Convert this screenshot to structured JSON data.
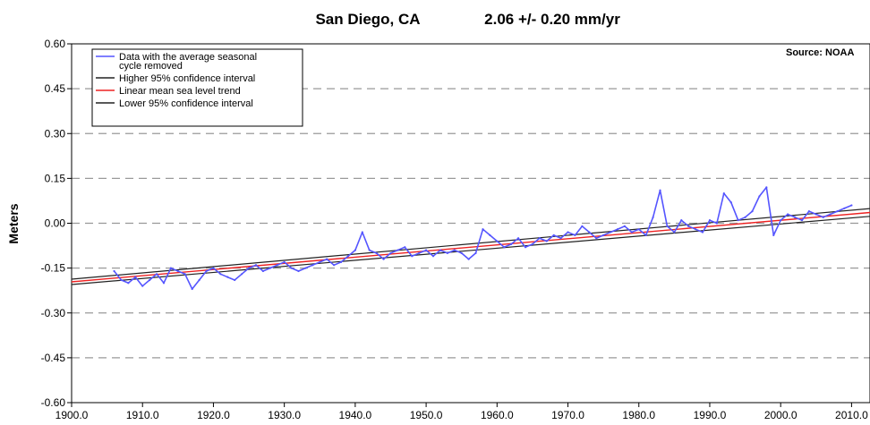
{
  "chart_data": {
    "type": "line",
    "title": "San Diego, CA",
    "subtitle": "2.06 +/- 0.20 mm/yr",
    "source": "Source: NOAA",
    "ylabel": "Meters",
    "xlabel": "",
    "xlim": [
      1900,
      2012.6
    ],
    "ylim": [
      -0.6,
      0.6
    ],
    "x_ticks": [
      1900,
      1910,
      1920,
      1930,
      1940,
      1950,
      1960,
      1970,
      1980,
      1990,
      2000,
      2010
    ],
    "x_tick_labels": [
      "1900.0",
      "1910.0",
      "1920.0",
      "1930.0",
      "1940.0",
      "1950.0",
      "1960.0",
      "1970.0",
      "1980.0",
      "1990.0",
      "2000.0",
      "2010.0"
    ],
    "y_ticks": [
      0.6,
      0.45,
      0.3,
      0.15,
      0.0,
      -0.15,
      -0.3,
      -0.45,
      -0.6
    ],
    "y_tick_labels": [
      "0.60",
      "0.45",
      "0.30",
      "0.15",
      "0.00",
      "-0.15",
      "-0.30",
      "-0.45",
      "-0.60"
    ],
    "grid": "horizontal dashed",
    "legend_position": "top-left",
    "colors": {
      "data": "#5555ff",
      "upper_ci": "#222222",
      "trend": "#ee2222",
      "lower_ci": "#222222",
      "grid": "#999999"
    },
    "legend": [
      {
        "label_line1": "Data with the average seasonal",
        "label_line2": "cycle removed",
        "color": "#5555ff"
      },
      {
        "label_line1": "Higher 95% confidence interval",
        "label_line2": "",
        "color": "#222222"
      },
      {
        "label_line1": "Linear mean sea level trend",
        "label_line2": "",
        "color": "#ee2222"
      },
      {
        "label_line1": "Lower 95% confidence interval",
        "label_line2": "",
        "color": "#222222"
      }
    ],
    "series": [
      {
        "role": "data",
        "x": [
          1906,
          1907,
          1908,
          1909,
          1910,
          1911,
          1912,
          1913,
          1914,
          1915,
          1916,
          1917,
          1918,
          1919,
          1920,
          1921,
          1922,
          1923,
          1924,
          1925,
          1926,
          1927,
          1928,
          1929,
          1930,
          1931,
          1932,
          1933,
          1934,
          1935,
          1936,
          1937,
          1938,
          1939,
          1940,
          1941,
          1942,
          1943,
          1944,
          1945,
          1946,
          1947,
          1948,
          1949,
          1950,
          1951,
          1952,
          1953,
          1954,
          1955,
          1956,
          1957,
          1958,
          1959,
          1960,
          1961,
          1962,
          1963,
          1964,
          1965,
          1966,
          1967,
          1968,
          1969,
          1970,
          1971,
          1972,
          1973,
          1974,
          1975,
          1976,
          1977,
          1978,
          1979,
          1980,
          1981,
          1982,
          1983,
          1984,
          1985,
          1986,
          1987,
          1988,
          1989,
          1990,
          1991,
          1992,
          1993,
          1994,
          1995,
          1996,
          1997,
          1998,
          1999,
          2000,
          2001,
          2002,
          2003,
          2004,
          2005,
          2006,
          2007,
          2008,
          2009,
          2010
        ],
        "y": [
          -0.16,
          -0.19,
          -0.2,
          -0.18,
          -0.21,
          -0.19,
          -0.17,
          -0.2,
          -0.15,
          -0.16,
          -0.17,
          -0.22,
          -0.19,
          -0.16,
          -0.15,
          -0.17,
          -0.18,
          -0.19,
          -0.17,
          -0.15,
          -0.14,
          -0.16,
          -0.15,
          -0.14,
          -0.13,
          -0.15,
          -0.16,
          -0.15,
          -0.14,
          -0.13,
          -0.12,
          -0.14,
          -0.13,
          -0.11,
          -0.09,
          -0.03,
          -0.09,
          -0.1,
          -0.12,
          -0.1,
          -0.09,
          -0.08,
          -0.11,
          -0.1,
          -0.09,
          -0.11,
          -0.09,
          -0.1,
          -0.09,
          -0.1,
          -0.12,
          -0.1,
          -0.02,
          -0.04,
          -0.06,
          -0.08,
          -0.07,
          -0.05,
          -0.08,
          -0.07,
          -0.05,
          -0.06,
          -0.04,
          -0.05,
          -0.03,
          -0.04,
          -0.01,
          -0.03,
          -0.05,
          -0.04,
          -0.03,
          -0.02,
          -0.01,
          -0.03,
          -0.02,
          -0.04,
          0.02,
          0.11,
          -0.01,
          -0.03,
          0.01,
          -0.01,
          -0.02,
          -0.03,
          0.01,
          0.0,
          0.1,
          0.07,
          0.01,
          0.02,
          0.04,
          0.09,
          0.12,
          -0.04,
          0.01,
          0.03,
          0.02,
          0.01,
          0.04,
          0.03,
          0.02,
          0.03,
          0.04,
          0.05,
          0.06
        ]
      },
      {
        "role": "upper_ci",
        "x": [
          1900,
          2012.6
        ],
        "y": [
          -0.187,
          0.049
        ]
      },
      {
        "role": "trend",
        "x": [
          1900,
          2012.6
        ],
        "y": [
          -0.196,
          0.036
        ]
      },
      {
        "role": "lower_ci",
        "x": [
          1900,
          2012.6
        ],
        "y": [
          -0.205,
          0.023
        ]
      }
    ]
  }
}
